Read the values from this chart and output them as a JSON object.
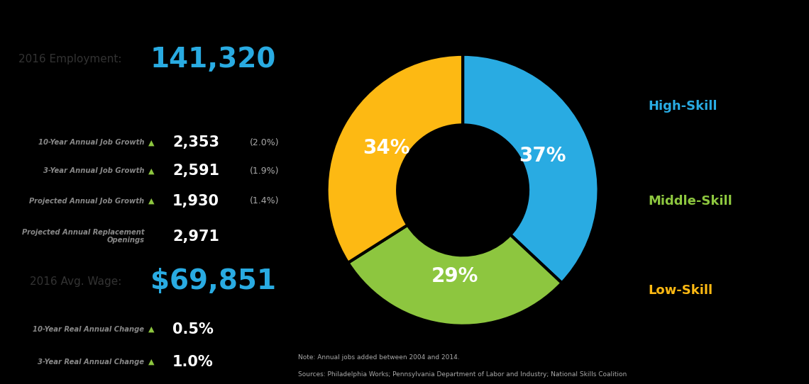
{
  "employment_label": "2016 Employment:",
  "employment_value": "141,320",
  "wage_label": "2016 Avg. Wage:",
  "wage_value": "$69,851",
  "stats": [
    {
      "label": "10-Year Annual Job Growth",
      "arrow": true,
      "value": "2,353",
      "pct": "(2.0%)"
    },
    {
      "label": "3-Year Annual Job Growth",
      "arrow": true,
      "value": "2,591",
      "pct": "(1.9%)"
    },
    {
      "label": "Projected Annual Job Growth",
      "arrow": true,
      "value": "1,930",
      "pct": "(1.4%)"
    },
    {
      "label": "Projected Annual Replacement\nOpenings",
      "arrow": false,
      "value": "2,971",
      "pct": ""
    }
  ],
  "wage_stats": [
    {
      "label": "10-Year Real Annual Change",
      "arrow": true,
      "value": "0.5%",
      "pct": ""
    },
    {
      "label": "3-Year Real Annual Change",
      "arrow": true,
      "value": "1.0%",
      "pct": ""
    }
  ],
  "pie_values": [
    37,
    29,
    34
  ],
  "pie_labels": [
    "High-Skill",
    "Middle-Skill",
    "Low-Skill"
  ],
  "pie_colors": [
    "#29ABE2",
    "#8DC63F",
    "#FDB913"
  ],
  "pie_pct_labels": [
    "37%",
    "29%",
    "34%"
  ],
  "note_line1": "Note: Annual jobs added between 2004 and 2014.",
  "note_line2": "Sources: Philadelphia Works; Pennsylvania Department of Labor and Industry; National Skills Coalition",
  "bg_dark": "#111111",
  "bg_light": "#e8e8e8",
  "bg_black": "#000000",
  "text_blue": "#29ABE2",
  "text_green": "#8DC63F",
  "text_white": "#ffffff",
  "text_dark": "#333333",
  "text_gray": "#888888",
  "text_lightgray": "#aaaaaa"
}
